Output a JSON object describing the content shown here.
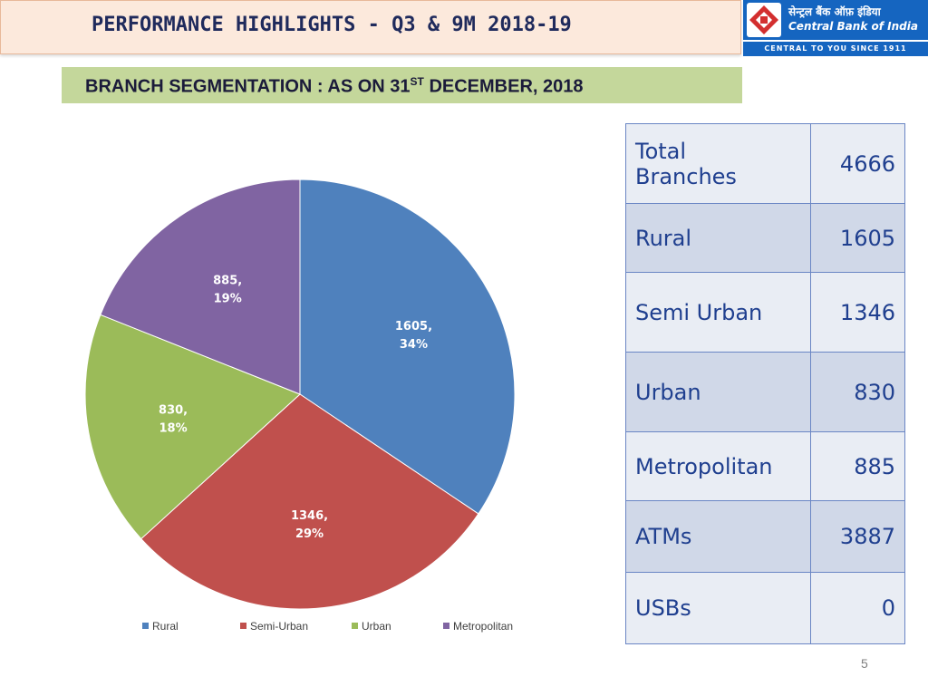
{
  "header": {
    "title": "PERFORMANCE HIGHLIGHTS - Q3 & 9M 2018-19",
    "logo": {
      "hindi": "सेन्ट्रल बैंक ऑफ़ इंडिया",
      "english": "Central Bank of India",
      "tagline": "CENTRAL TO YOU SINCE 1911"
    }
  },
  "subtitle": {
    "prefix": "BRANCH SEGMENTATION : AS ON 31",
    "superscript": "ST",
    "suffix": " DECEMBER, 2018"
  },
  "chart_data": {
    "type": "pie",
    "categories": [
      "Rural",
      "Semi-Urban",
      "Urban",
      "Metropolitan"
    ],
    "values": [
      1605,
      1346,
      830,
      885
    ],
    "percentages": [
      "34%",
      "29%",
      "18%",
      "19%"
    ],
    "data_labels": [
      "1605,",
      "1346,",
      "830,",
      "885,"
    ],
    "colors": [
      "#4f81bd",
      "#c0504d",
      "#9bbb59",
      "#8064a2"
    ],
    "legend_position": "bottom"
  },
  "table": {
    "rows": [
      {
        "label_line1": "Total",
        "label_line2": "Branches",
        "value": "4666"
      },
      {
        "label": "Rural",
        "value": "1605"
      },
      {
        "label": "Semi Urban",
        "value": "1346"
      },
      {
        "label": "Urban",
        "value": "830"
      },
      {
        "label": "Metropolitan",
        "value": "885"
      },
      {
        "label": "ATMs",
        "value": "3887"
      },
      {
        "label": "USBs",
        "value": "0"
      }
    ]
  },
  "page_number": "5"
}
